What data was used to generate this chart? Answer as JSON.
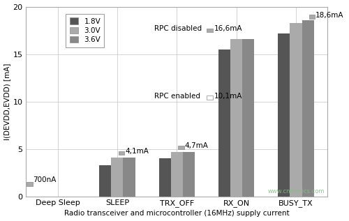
{
  "categories": [
    "Deep Sleep",
    "SLEEP",
    "TRX_OFF",
    "RX_ON",
    "BUSY_TX"
  ],
  "series_order": [
    "1.8V",
    "3.0V",
    "3.6V"
  ],
  "series": {
    "1.8V": [
      0.0007,
      3.3,
      4.0,
      15.5,
      17.2
    ],
    "3.0V": [
      0.0007,
      4.1,
      4.7,
      16.6,
      18.3
    ],
    "3.6V": [
      0.0007,
      4.1,
      4.7,
      16.6,
      18.6
    ]
  },
  "deep_sleep_only_first": true,
  "colors": {
    "1.8V": "#555555",
    "3.0V": "#aaaaaa",
    "3.6V": "#888888"
  },
  "ylabel": "I(DEVDD,EVDD) [mA]",
  "xlabel": "Radio transceiver and microcontroller (16MHz) supply current",
  "ylim": [
    0,
    20
  ],
  "yticks": [
    0,
    5,
    10,
    15,
    20
  ],
  "legend_labels": [
    "1.8V",
    "3.0V",
    "3.6V"
  ],
  "watermark": "www.cntronics.com",
  "bar_width": 0.2,
  "figsize": [
    5.0,
    3.17
  ],
  "dpi": 100
}
